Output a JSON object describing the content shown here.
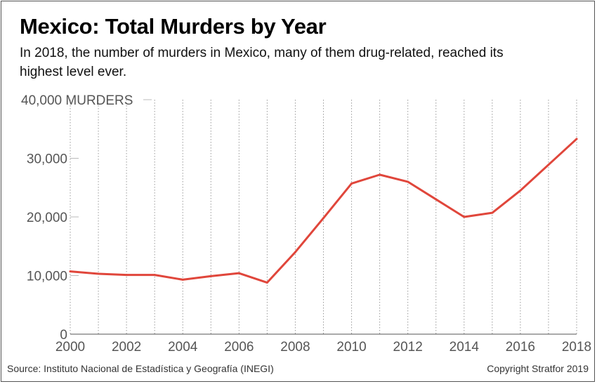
{
  "title": "Mexico: Total Murders by Year",
  "subtitle": "In 2018, the number of murders in Mexico, many of them drug-related, reached its highest level ever.",
  "source": "Source: Instituto Nacional de Estadística y Geografía (INEGI)",
  "copyright": "Copyright Stratfor 2019",
  "chart_data": {
    "type": "line",
    "title": "Mexico: Total Murders by Year",
    "xlabel": "",
    "ylabel": "",
    "x": [
      2000,
      2001,
      2002,
      2003,
      2004,
      2005,
      2006,
      2007,
      2008,
      2009,
      2010,
      2011,
      2012,
      2013,
      2014,
      2015,
      2016,
      2017,
      2018
    ],
    "series": [
      {
        "values": [
          10700,
          10300,
          10100,
          10100,
          9300,
          9900,
          10400,
          8800,
          14000,
          19800,
          25700,
          27200,
          26000,
          23000,
          20000,
          20700,
          24500,
          28900,
          33300
        ],
        "color": "#e0463b"
      }
    ],
    "ylim": [
      0,
      40000
    ],
    "xlim": [
      2000,
      2018
    ],
    "y_ticks": [
      "0",
      "10,000",
      "20,000",
      "30,000",
      "40,000 MURDERS"
    ],
    "y_tick_values": [
      0,
      10000,
      20000,
      30000,
      40000
    ],
    "x_ticks": [
      "2000",
      "2002",
      "2004",
      "2006",
      "2008",
      "2010",
      "2012",
      "2014",
      "2016",
      "2018"
    ],
    "x_tick_values": [
      2000,
      2002,
      2004,
      2006,
      2008,
      2010,
      2012,
      2014,
      2016,
      2018
    ],
    "grid": "vertical dotted at each year",
    "legend": "none"
  }
}
